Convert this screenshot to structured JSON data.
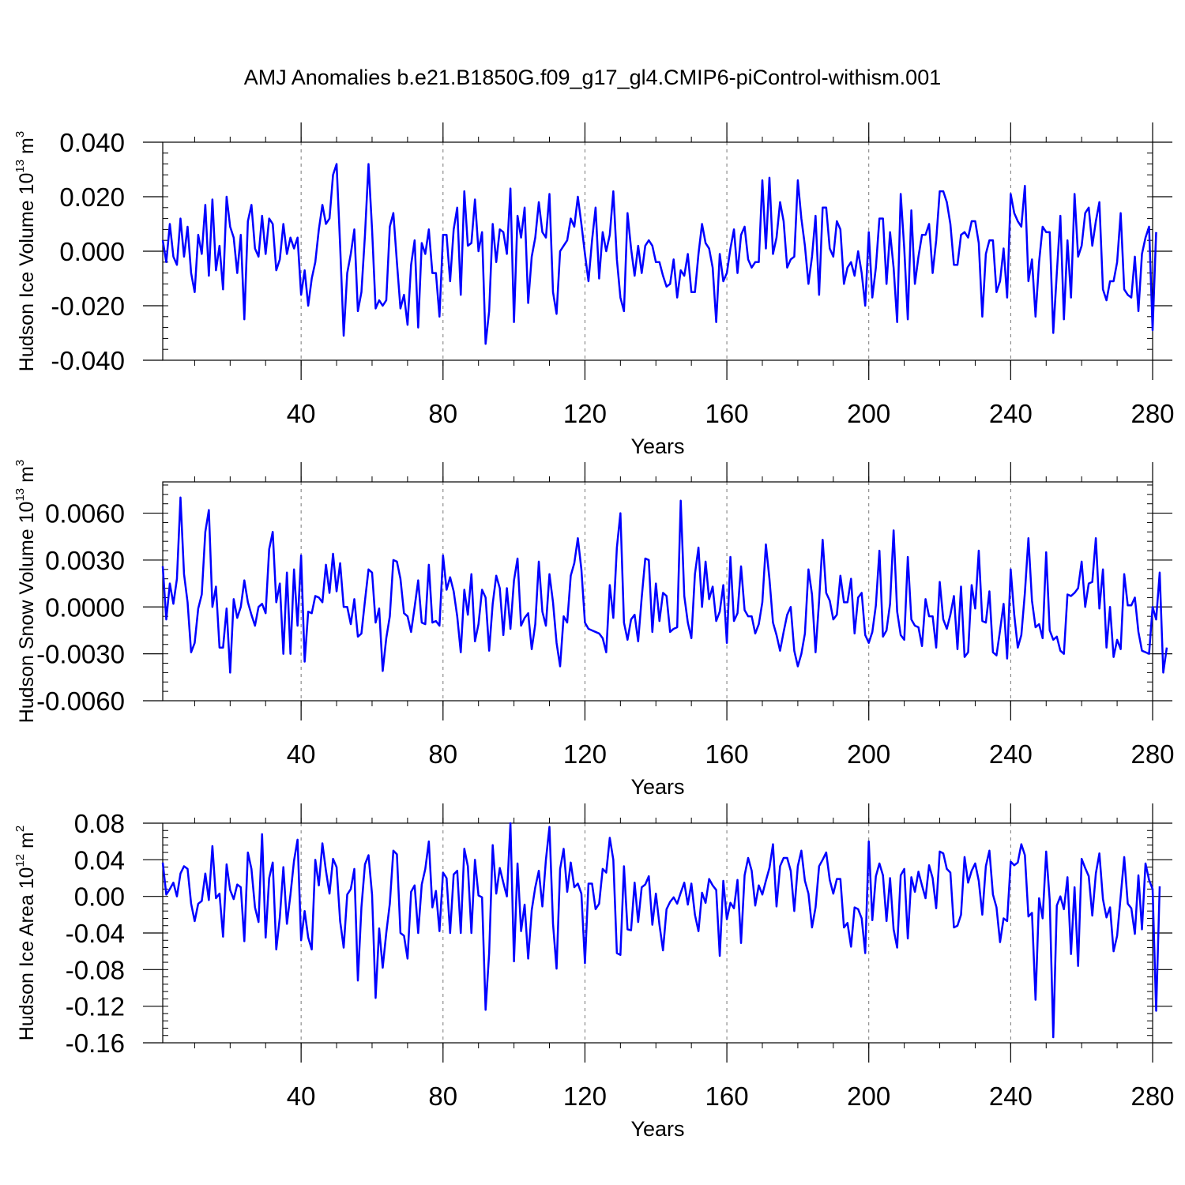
{
  "title": "AMJ Anomalies b.e21.B1850G.f09_g17_gl4.CMIP6-piControl-withism.001",
  "chart_data": [
    {
      "type": "line",
      "title": "AMJ Anomalies b.e21.B1850G.f09_g17_gl4.CMIP6-piControl-withism.001",
      "xlabel": "Years",
      "ylabel": {
        "main": "Hudson Ice Volume 10",
        "exp": "13",
        "unit": " m",
        "unit_exp": "3"
      },
      "xlim": [
        1,
        280
      ],
      "ylim": [
        -0.04,
        0.04
      ],
      "x_ticks": [
        40,
        80,
        120,
        160,
        200,
        240,
        280
      ],
      "x_tick_labels": [
        "40",
        "80",
        "120",
        "160",
        "200",
        "240",
        "280"
      ],
      "y_ticks": [
        -0.04,
        -0.02,
        0.0,
        0.02,
        0.04
      ],
      "y_tick_labels": [
        "-0.040",
        "-0.020",
        "0.000",
        "0.020",
        "0.040"
      ],
      "grid": "vertical dashed at x ticks",
      "series": [
        {
          "name": "Hudson Ice Volume",
          "color": "#0000ff",
          "x_start": 1,
          "values": [
            0.004,
            -0.004,
            0.01,
            -0.002,
            -0.005,
            0.012,
            -0.002,
            0.009,
            -0.008,
            -0.015,
            0.006,
            -0.001,
            0.017,
            -0.009,
            0.019,
            -0.007,
            0.002,
            -0.014,
            0.02,
            0.009,
            0.005,
            -0.008,
            0.006,
            -0.025,
            0.011,
            0.017,
            0.001,
            -0.002,
            0.013,
            -0.001,
            0.012,
            0.01,
            -0.007,
            -0.003,
            0.01,
            -0.001,
            0.005,
            0.001,
            0.005,
            -0.016,
            -0.007,
            -0.02,
            -0.01,
            -0.004,
            0.008,
            0.017,
            0.01,
            0.012,
            0.028,
            0.032,
            0.002,
            -0.031,
            -0.008,
            -0.001,
            0.008,
            -0.022,
            -0.015,
            0.006,
            0.032,
            0.008,
            -0.021,
            -0.018,
            -0.02,
            -0.018,
            0.009,
            0.014,
            -0.004,
            -0.021,
            -0.016,
            -0.027,
            -0.005,
            0.004,
            -0.028,
            0.003,
            -0.001,
            0.008,
            -0.008,
            -0.008,
            -0.024,
            0.006,
            0.006,
            -0.011,
            0.008,
            0.016,
            -0.016,
            0.022,
            0.002,
            0.003,
            0.019,
            0.0,
            0.007,
            -0.034,
            -0.022,
            0.01,
            -0.004,
            0.008,
            0.007,
            -0.001,
            0.023,
            -0.026,
            0.013,
            0.005,
            0.016,
            -0.019,
            -0.002,
            0.005,
            0.018,
            0.007,
            0.005,
            0.021,
            -0.015,
            -0.023,
            0.0,
            0.002,
            0.004,
            0.012,
            0.009,
            0.02,
            0.01,
            -0.001,
            -0.011,
            0.004,
            0.016,
            -0.01,
            0.007,
            0.0,
            0.006,
            0.022,
            -0.003,
            -0.017,
            -0.022,
            0.014,
            0.001,
            -0.009,
            0.002,
            -0.008,
            0.002,
            0.004,
            0.002,
            -0.004,
            -0.004,
            -0.009,
            -0.013,
            -0.012,
            -0.003,
            -0.017,
            -0.007,
            -0.009,
            -0.001,
            -0.015,
            -0.015,
            -0.001,
            0.01,
            0.003,
            0.001,
            -0.006,
            -0.026,
            -0.001,
            -0.011,
            -0.008,
            0.001,
            0.008,
            -0.008,
            0.006,
            0.009,
            -0.003,
            -0.006,
            -0.004,
            -0.004,
            0.026,
            0.001,
            0.027,
            -0.001,
            0.005,
            0.018,
            0.011,
            -0.006,
            -0.003,
            -0.002,
            0.026,
            0.012,
            0.002,
            -0.012,
            -0.002,
            0.013,
            -0.016,
            0.016,
            0.016,
            0.001,
            -0.002,
            0.011,
            0.008,
            -0.012,
            -0.006,
            -0.004,
            -0.009,
            0.0,
            -0.008,
            -0.02,
            0.007,
            -0.017,
            -0.006,
            0.012,
            0.012,
            -0.012,
            0.007,
            -0.006,
            -0.026,
            0.021,
            0.001,
            -0.025,
            0.015,
            -0.012,
            -0.002,
            0.006,
            0.006,
            0.01,
            -0.008,
            0.004,
            0.022,
            0.022,
            0.018,
            0.01,
            -0.005,
            -0.005,
            0.006,
            0.007,
            0.005,
            0.011,
            0.011,
            0.003,
            -0.024,
            -0.001,
            0.004,
            0.004,
            -0.015,
            -0.011,
            0.001,
            -0.017,
            0.021,
            0.014,
            0.011,
            0.009,
            0.024,
            -0.011,
            -0.003,
            -0.024,
            -0.004,
            0.009,
            0.007,
            0.007,
            -0.03,
            -0.008,
            0.013,
            -0.025,
            0.004,
            -0.017,
            0.021,
            -0.002,
            0.002,
            0.014,
            0.016,
            0.002,
            0.011,
            0.018,
            -0.014,
            -0.018,
            -0.011,
            -0.011,
            -0.004,
            0.014,
            -0.014,
            -0.016,
            -0.017,
            -0.002,
            -0.022,
            -0.001,
            0.005,
            0.009,
            -0.029,
            0.007
          ]
        }
      ]
    },
    {
      "type": "line",
      "xlabel": "Years",
      "ylabel": {
        "main": "Hudson Snow Volume 10",
        "exp": "13",
        "unit": " m",
        "unit_exp": "3"
      },
      "xlim": [
        1,
        280
      ],
      "ylim": [
        -0.006,
        0.008
      ],
      "x_ticks": [
        40,
        80,
        120,
        160,
        200,
        240,
        280
      ],
      "x_tick_labels": [
        "40",
        "80",
        "120",
        "160",
        "200",
        "240",
        "280"
      ],
      "y_ticks": [
        -0.006,
        -0.003,
        0.0,
        0.003,
        0.006
      ],
      "y_tick_labels": [
        "-0.0060",
        "-0.0030",
        "0.0000",
        "0.0030",
        "0.0060"
      ],
      "grid": "vertical dashed at x ticks",
      "series": [
        {
          "name": "Hudson Snow Volume",
          "color": "#0000ff",
          "x_start": 1,
          "values": [
            0.0026,
            -0.0008,
            0.0015,
            0.0002,
            0.0018,
            0.007,
            0.0021,
            0.0003,
            -0.0029,
            -0.0023,
            -0.0001,
            0.0008,
            0.0048,
            0.0062,
            0.0,
            0.0013,
            -0.0026,
            -0.0026,
            -0.0001,
            -0.0042,
            0.0005,
            -0.0007,
            0.0,
            0.0017,
            0.0003,
            -0.0005,
            -0.0012,
            0.0,
            0.0002,
            -0.0004,
            0.0037,
            0.0048,
            0.0003,
            0.0015,
            -0.003,
            0.0022,
            -0.003,
            0.0024,
            -0.0012,
            0.0033,
            -0.0035,
            -0.0003,
            -0.0004,
            0.0007,
            0.0006,
            0.0003,
            0.0027,
            0.0009,
            0.0034,
            0.001,
            0.0028,
            0.0,
            0.0,
            -0.0011,
            0.0005,
            -0.0019,
            -0.0017,
            0.0004,
            0.0024,
            0.0022,
            -0.001,
            -0.0001,
            -0.0041,
            -0.002,
            -0.0006,
            0.003,
            0.0029,
            0.0018,
            -0.0004,
            -0.0006,
            -0.0016,
            0.0,
            0.0017,
            -0.001,
            -0.0011,
            0.0027,
            -0.001,
            -0.0009,
            -0.0012,
            0.0033,
            0.0011,
            0.0019,
            0.001,
            -0.0006,
            -0.0029,
            0.0011,
            -0.0005,
            0.0021,
            -0.0022,
            -0.0011,
            0.0011,
            0.0006,
            -0.0028,
            0.0002,
            0.002,
            0.0012,
            -0.0018,
            0.0012,
            -0.0014,
            0.0017,
            0.0031,
            -0.0012,
            -0.0007,
            -0.0004,
            -0.0027,
            -0.0011,
            0.0029,
            -0.0003,
            -0.0012,
            0.0021,
            0.0003,
            -0.0023,
            -0.0038,
            -0.0006,
            -0.001,
            0.002,
            0.0028,
            0.0044,
            0.0024,
            -0.001,
            -0.0014,
            -0.0015,
            -0.0016,
            -0.0017,
            -0.002,
            -0.0029,
            0.0014,
            -0.0007,
            0.0038,
            0.006,
            -0.001,
            -0.0021,
            -0.0008,
            -0.0005,
            -0.0022,
            0.0006,
            0.0031,
            0.003,
            -0.0016,
            0.0015,
            -0.0009,
            0.0009,
            0.0007,
            -0.0016,
            -0.0014,
            -0.0013,
            0.0068,
            0.0007,
            -0.001,
            -0.002,
            0.0021,
            0.0038,
            0.0,
            0.0029,
            0.0005,
            0.0013,
            -0.0009,
            -0.0003,
            0.0014,
            -0.0023,
            0.0032,
            -0.0009,
            -0.0004,
            0.0026,
            -0.0002,
            -0.0006,
            -0.0006,
            -0.0017,
            -0.0011,
            0.0003,
            0.004,
            0.0018,
            -0.001,
            -0.0018,
            -0.0028,
            -0.0016,
            -0.0005,
            0.0,
            -0.0028,
            -0.0038,
            -0.003,
            -0.0017,
            0.0024,
            0.0008,
            -0.0029,
            0.0004,
            0.0043,
            0.0009,
            0.0004,
            -0.0008,
            -0.0005,
            0.002,
            0.0003,
            0.0003,
            0.0018,
            -0.0017,
            0.0006,
            0.0009,
            -0.0018,
            -0.0023,
            -0.0016,
            0.0001,
            0.0036,
            -0.0019,
            -0.0015,
            0.0002,
            0.0049,
            -0.0003,
            -0.0018,
            -0.0021,
            0.0032,
            -0.0008,
            -0.0012,
            -0.0013,
            -0.0025,
            0.0005,
            -0.0006,
            -0.0006,
            -0.0026,
            0.0016,
            -0.0008,
            -0.0014,
            -0.0005,
            0.0007,
            -0.0027,
            0.0013,
            -0.0032,
            -0.0029,
            0.0014,
            -0.0001,
            0.0036,
            -0.0009,
            -0.001,
            0.001,
            -0.0029,
            -0.0031,
            -0.0015,
            0.0002,
            -0.0033,
            0.0024,
            -0.0005,
            -0.0026,
            -0.0018,
            0.0009,
            0.0044,
            0.0004,
            -0.0013,
            -0.0011,
            -0.002,
            0.0035,
            -0.0015,
            -0.0021,
            -0.0019,
            -0.0028,
            -0.003,
            0.0008,
            0.0007,
            0.0009,
            0.0012,
            0.0029,
            0.0,
            0.0015,
            0.0016,
            0.0044,
            -0.0001,
            0.0024,
            -0.0026,
            0.0,
            -0.0032,
            -0.0021,
            -0.0027,
            0.0021,
            0.0001,
            0.0001,
            0.0006,
            -0.0016,
            -0.0028,
            -0.0029,
            -0.003,
            0.0,
            -0.0008,
            0.0022,
            -0.0042,
            -0.0026
          ]
        }
      ]
    },
    {
      "type": "line",
      "xlabel": "Years",
      "ylabel": {
        "main": "Hudson Ice Area 10",
        "exp": "12",
        "unit": " m",
        "unit_exp": "2"
      },
      "xlim": [
        1,
        280
      ],
      "ylim": [
        -0.16,
        0.08
      ],
      "x_ticks": [
        40,
        80,
        120,
        160,
        200,
        240,
        280
      ],
      "x_tick_labels": [
        "40",
        "80",
        "120",
        "160",
        "200",
        "240",
        "280"
      ],
      "y_ticks": [
        -0.16,
        -0.12,
        -0.08,
        -0.04,
        0.0,
        0.04,
        0.08
      ],
      "y_tick_labels": [
        "-0.16",
        "-0.12",
        "-0.08",
        "-0.04",
        "0.00",
        "0.04",
        "0.08"
      ],
      "grid": "vertical dashed at x ticks",
      "series": [
        {
          "name": "Hudson Ice Area",
          "color": "#0000ff",
          "x_start": 1,
          "values": [
            0.037,
            0.002,
            0.008,
            0.015,
            0.0,
            0.025,
            0.033,
            0.03,
            -0.008,
            -0.027,
            -0.008,
            -0.005,
            0.025,
            -0.004,
            0.055,
            -0.002,
            0.003,
            -0.044,
            0.035,
            0.007,
            -0.003,
            0.013,
            0.01,
            -0.049,
            0.048,
            0.03,
            -0.012,
            -0.028,
            0.068,
            -0.045,
            0.02,
            0.037,
            -0.058,
            -0.023,
            0.032,
            -0.03,
            0.002,
            0.039,
            0.062,
            -0.048,
            -0.016,
            -0.045,
            -0.058,
            0.04,
            0.012,
            0.058,
            0.028,
            0.003,
            0.041,
            0.032,
            -0.027,
            -0.056,
            0.002,
            0.008,
            0.03,
            -0.092,
            -0.012,
            0.035,
            0.045,
            0.002,
            -0.111,
            -0.035,
            -0.078,
            -0.04,
            -0.008,
            0.05,
            0.046,
            -0.04,
            -0.043,
            -0.068,
            0.005,
            0.012,
            -0.04,
            0.013,
            0.03,
            0.06,
            -0.012,
            0.006,
            -0.038,
            0.026,
            0.02,
            -0.04,
            0.024,
            0.028,
            -0.04,
            0.052,
            0.033,
            -0.04,
            0.04,
            0.001,
            -0.001,
            -0.124,
            -0.062,
            0.056,
            0.003,
            0.031,
            0.015,
            0.0,
            0.08,
            -0.071,
            0.036,
            -0.038,
            -0.009,
            -0.068,
            -0.015,
            0.01,
            0.028,
            -0.011,
            0.04,
            0.076,
            -0.03,
            -0.079,
            0.03,
            0.052,
            0.005,
            0.037,
            0.01,
            0.014,
            0.003,
            -0.073,
            0.014,
            0.014,
            -0.014,
            -0.008,
            0.03,
            0.026,
            0.064,
            0.04,
            -0.062,
            -0.064,
            0.033,
            -0.036,
            -0.037,
            0.015,
            -0.028,
            0.01,
            0.013,
            0.022,
            -0.031,
            0.003,
            -0.031,
            -0.059,
            -0.014,
            -0.006,
            -0.001,
            -0.008,
            0.004,
            0.015,
            -0.009,
            0.014,
            -0.02,
            -0.038,
            0.004,
            -0.007,
            0.019,
            0.012,
            0.007,
            -0.065,
            0.017,
            -0.025,
            -0.007,
            -0.013,
            0.018,
            -0.051,
            0.023,
            0.042,
            0.028,
            -0.01,
            0.012,
            0.002,
            0.017,
            0.031,
            0.057,
            -0.011,
            0.033,
            0.042,
            0.042,
            0.028,
            -0.016,
            0.033,
            0.05,
            0.017,
            0.003,
            -0.034,
            -0.012,
            0.033,
            0.04,
            0.048,
            0.018,
            0.003,
            0.019,
            0.019,
            -0.034,
            -0.029,
            -0.055,
            -0.012,
            -0.014,
            -0.024,
            -0.062,
            0.06,
            -0.026,
            0.022,
            0.036,
            0.023,
            -0.027,
            0.02,
            -0.036,
            -0.056,
            0.023,
            0.03,
            -0.046,
            0.021,
            0.005,
            0.027,
            0.012,
            -0.002,
            0.034,
            0.02,
            -0.013,
            0.049,
            0.047,
            0.03,
            0.026,
            -0.034,
            -0.032,
            -0.02,
            0.043,
            0.015,
            0.028,
            0.036,
            0.017,
            -0.02,
            0.033,
            0.05,
            0.002,
            -0.012,
            -0.05,
            -0.024,
            -0.027,
            0.038,
            0.034,
            0.037,
            0.057,
            0.045,
            -0.022,
            -0.018,
            -0.113,
            -0.002,
            -0.024,
            0.049,
            -0.004,
            -0.154,
            -0.01,
            0.0,
            -0.014,
            0.021,
            -0.063,
            0.01,
            -0.076,
            0.041,
            0.031,
            0.022,
            -0.021,
            0.025,
            0.047,
            -0.003,
            -0.023,
            -0.012,
            -0.06,
            -0.043,
            0.0,
            0.043,
            -0.008,
            -0.013,
            -0.041,
            0.023,
            -0.036,
            0.036,
            0.018,
            0.008,
            -0.125,
            0.011
          ]
        }
      ]
    }
  ]
}
